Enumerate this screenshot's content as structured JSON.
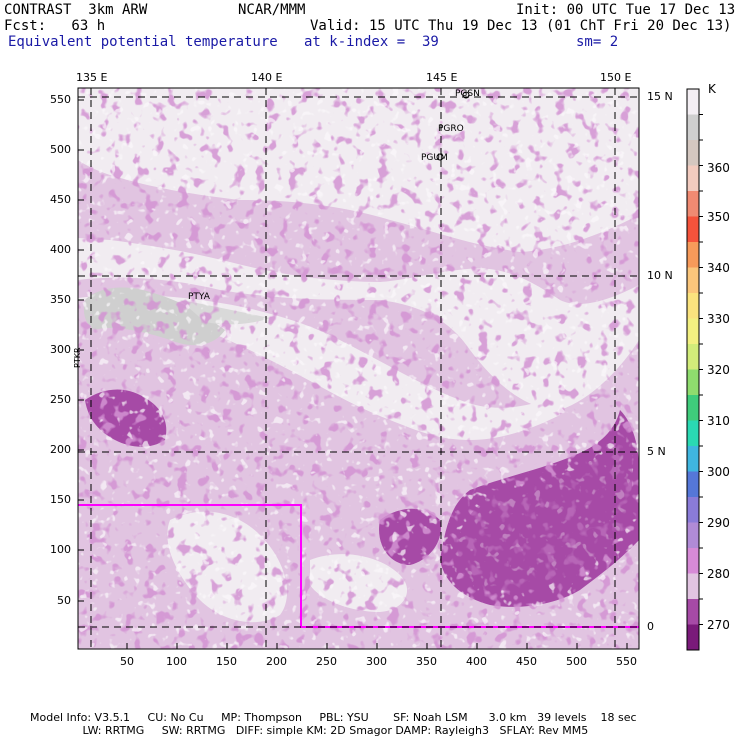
{
  "header": {
    "model": "CONTRAST  3km ARW",
    "org": "NCAR/MMM",
    "init": "Init: 00 UTC Tue 17 Dec 13",
    "fcst": "Fcst:   63 h",
    "valid": "Valid: 15 UTC Thu 19 Dec 13 (01 ChT Fri 20 Dec 13)",
    "field": "Equivalent potential temperature",
    "level": "at k-index =  39",
    "smooth": "sm= 2"
  },
  "axes": {
    "lon_labels": [
      "135 E",
      "140 E",
      "145 E",
      "150 E"
    ],
    "lat_labels": [
      "15 N",
      "10 N",
      "5 N",
      "0"
    ],
    "y_ticks": [
      "550",
      "500",
      "450",
      "400",
      "350",
      "300",
      "250",
      "200",
      "150",
      "100",
      "50"
    ],
    "x_ticks": [
      "50",
      "100",
      "150",
      "200",
      "250",
      "300",
      "350",
      "400",
      "450",
      "500",
      "550"
    ]
  },
  "stations": [
    "PGSN",
    "PGRO",
    "PGUM",
    "PTYA",
    "PTKR"
  ],
  "colorbar": {
    "unit": "K",
    "labels": [
      "360",
      "350",
      "340",
      "330",
      "320",
      "310",
      "300",
      "290",
      "280",
      "270"
    ],
    "colors": [
      "#f4eff4",
      "#cfcfcf",
      "#d4c7c0",
      "#f2cbbf",
      "#f08a72",
      "#f5533b",
      "#f79a5a",
      "#fbc67b",
      "#fbe37e",
      "#f3f081",
      "#d2ec7a",
      "#8fdc6e",
      "#3fcc7b",
      "#2ad9b3",
      "#3fb6e0",
      "#5577d8",
      "#8a7bd8",
      "#b08bd6",
      "#d68ad6",
      "#e1c4e1",
      "#a64aa6",
      "#7a1a7a"
    ]
  },
  "footer": {
    "line1": "Model Info: V3.5.1     CU: No Cu     MP: Thompson     PBL: YSU       SF: Noah LSM      3.0 km   39 levels    18 sec",
    "line2": "               LW: RRTMG     SW: RRTMG   DIFF: simple KM: 2D Smagor DAMP: Rayleigh3   SFLAY: Rev MM5"
  }
}
